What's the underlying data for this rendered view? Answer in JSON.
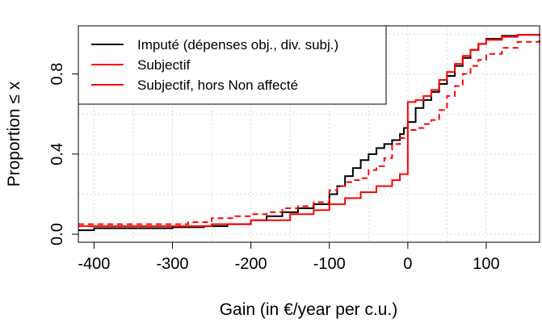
{
  "chart_data": {
    "type": "line",
    "title": "",
    "xlabel": "Gain (in €/year per c.u.)",
    "ylabel": "Proportion  ≤  x",
    "xlim": [
      -420,
      168
    ],
    "ylim": [
      -0.04,
      1.04
    ],
    "x_ticks": [
      -400,
      -300,
      -200,
      -100,
      0,
      100
    ],
    "x_tick_labels": [
      "-400",
      "-300",
      "-200",
      "-100",
      "0",
      "100"
    ],
    "y_ticks": [
      0.0,
      0.4,
      0.8
    ],
    "y_tick_labels": [
      "0.0",
      "0.4",
      "0.8"
    ],
    "grid": true,
    "legend_position": "top-left",
    "series": [
      {
        "name": "Imputé (dépenses obj., div. subj.)",
        "color": "#000000",
        "dash": "solid",
        "step": true,
        "x": [
          -420,
          -400,
          -300,
          -260,
          -230,
          -200,
          -180,
          -160,
          -140,
          -120,
          -100,
          -90,
          -80,
          -70,
          -60,
          -50,
          -40,
          -30,
          -20,
          -10,
          -5,
          0,
          10,
          20,
          30,
          40,
          50,
          60,
          70,
          80,
          90,
          100,
          120,
          140,
          168
        ],
        "y": [
          0.02,
          0.03,
          0.035,
          0.04,
          0.05,
          0.07,
          0.09,
          0.11,
          0.13,
          0.15,
          0.2,
          0.24,
          0.29,
          0.33,
          0.37,
          0.4,
          0.43,
          0.45,
          0.47,
          0.5,
          0.53,
          0.56,
          0.63,
          0.67,
          0.71,
          0.75,
          0.79,
          0.84,
          0.88,
          0.92,
          0.95,
          0.975,
          0.99,
          0.995,
          1.0
        ]
      },
      {
        "name": "Subjectif",
        "color": "#ff0000",
        "dash": "dashed",
        "step": true,
        "x": [
          -420,
          -350,
          -280,
          -250,
          -220,
          -200,
          -180,
          -160,
          -140,
          -120,
          -100,
          -90,
          -80,
          -70,
          -60,
          -50,
          -40,
          -30,
          -20,
          -10,
          0,
          10,
          20,
          30,
          40,
          50,
          60,
          70,
          80,
          90,
          100,
          120,
          140,
          168
        ],
        "y": [
          0.05,
          0.05,
          0.06,
          0.08,
          0.09,
          0.1,
          0.11,
          0.13,
          0.14,
          0.16,
          0.22,
          0.24,
          0.26,
          0.27,
          0.28,
          0.32,
          0.34,
          0.38,
          0.45,
          0.48,
          0.52,
          0.53,
          0.55,
          0.57,
          0.62,
          0.69,
          0.74,
          0.8,
          0.84,
          0.87,
          0.9,
          0.93,
          0.96,
          0.99
        ]
      },
      {
        "name": "Subjectif, hors Non affecté",
        "color": "#ff0000",
        "dash": "solid",
        "step": true,
        "x": [
          -420,
          -350,
          -250,
          -200,
          -150,
          -120,
          -100,
          -80,
          -60,
          -40,
          -20,
          -10,
          0,
          10,
          20,
          30,
          40,
          50,
          60,
          70,
          80,
          90,
          100,
          120,
          140,
          168
        ],
        "y": [
          0.04,
          0.04,
          0.05,
          0.07,
          0.1,
          0.12,
          0.15,
          0.18,
          0.21,
          0.24,
          0.27,
          0.3,
          0.66,
          0.67,
          0.69,
          0.72,
          0.77,
          0.81,
          0.85,
          0.89,
          0.92,
          0.95,
          0.97,
          0.985,
          0.995,
          1.0
        ]
      }
    ]
  }
}
